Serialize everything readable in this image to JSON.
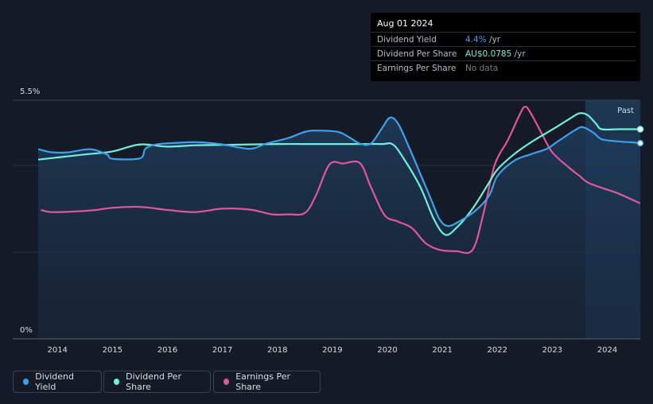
{
  "tooltip": {
    "date": "Aug 01 2024",
    "rows": [
      {
        "label": "Dividend Yield",
        "value": "4.4%",
        "unit": " /yr",
        "color": "#3ea0ea"
      },
      {
        "label": "Dividend Per Share",
        "value": "AU$0.0785",
        "unit": " /yr",
        "color": "#6ef0dc"
      },
      {
        "label": "Earnings Per Share",
        "value": "No data",
        "unit": "",
        "color": "#767d89"
      }
    ]
  },
  "legend": [
    {
      "label": "Dividend Yield",
      "color": "#3ea0ea"
    },
    {
      "label": "Dividend Per Share",
      "color": "#6ef0dc"
    },
    {
      "label": "Earnings Per Share",
      "color": "#e0559c"
    }
  ],
  "chart_data": {
    "type": "line",
    "ymax_label": "5.5%",
    "ymin_label": "0%",
    "ylim": [
      0,
      5.5
    ],
    "xlim": [
      2013.65,
      2024.6
    ],
    "x_ticks": [
      "2014",
      "2015",
      "2016",
      "2017",
      "2018",
      "2019",
      "2020",
      "2021",
      "2022",
      "2023",
      "2024"
    ],
    "past_label": "Past",
    "past_start": 2023.6,
    "series": [
      {
        "name": "Dividend Yield",
        "color": "#3ea0ea",
        "points": [
          [
            2013.65,
            4.37
          ],
          [
            2013.9,
            4.3
          ],
          [
            2014.2,
            4.3
          ],
          [
            2014.6,
            4.37
          ],
          [
            2014.9,
            4.25
          ],
          [
            2015.0,
            4.15
          ],
          [
            2015.5,
            4.16
          ],
          [
            2015.6,
            4.38
          ],
          [
            2015.8,
            4.48
          ],
          [
            2016.2,
            4.52
          ],
          [
            2016.6,
            4.53
          ],
          [
            2017.0,
            4.48
          ],
          [
            2017.5,
            4.38
          ],
          [
            2017.8,
            4.5
          ],
          [
            2018.2,
            4.63
          ],
          [
            2018.5,
            4.77
          ],
          [
            2018.7,
            4.8
          ],
          [
            2019.1,
            4.77
          ],
          [
            2019.3,
            4.65
          ],
          [
            2019.5,
            4.5
          ],
          [
            2019.7,
            4.5
          ],
          [
            2019.9,
            4.85
          ],
          [
            2020.05,
            5.1
          ],
          [
            2020.2,
            4.95
          ],
          [
            2020.4,
            4.4
          ],
          [
            2020.6,
            3.8
          ],
          [
            2020.8,
            3.2
          ],
          [
            2020.95,
            2.75
          ],
          [
            2021.1,
            2.6
          ],
          [
            2021.3,
            2.7
          ],
          [
            2021.6,
            2.95
          ],
          [
            2021.85,
            3.3
          ],
          [
            2022.0,
            3.75
          ],
          [
            2022.3,
            4.1
          ],
          [
            2022.6,
            4.25
          ],
          [
            2022.9,
            4.38
          ],
          [
            2023.1,
            4.55
          ],
          [
            2023.4,
            4.8
          ],
          [
            2023.55,
            4.88
          ],
          [
            2023.75,
            4.75
          ],
          [
            2023.9,
            4.6
          ],
          [
            2024.2,
            4.55
          ],
          [
            2024.45,
            4.53
          ],
          [
            2024.6,
            4.51
          ]
        ]
      },
      {
        "name": "Dividend Per Share",
        "color": "#6ef0dc",
        "points": [
          [
            2013.65,
            4.13
          ],
          [
            2014.0,
            4.18
          ],
          [
            2014.5,
            4.25
          ],
          [
            2015.0,
            4.32
          ],
          [
            2015.5,
            4.48
          ],
          [
            2016.0,
            4.43
          ],
          [
            2016.5,
            4.46
          ],
          [
            2017.0,
            4.47
          ],
          [
            2017.5,
            4.48
          ],
          [
            2018.0,
            4.49
          ],
          [
            2018.5,
            4.49
          ],
          [
            2019.0,
            4.49
          ],
          [
            2019.5,
            4.49
          ],
          [
            2019.9,
            4.49
          ],
          [
            2020.1,
            4.48
          ],
          [
            2020.3,
            4.15
          ],
          [
            2020.6,
            3.5
          ],
          [
            2020.85,
            2.75
          ],
          [
            2021.05,
            2.4
          ],
          [
            2021.25,
            2.55
          ],
          [
            2021.55,
            3.0
          ],
          [
            2021.85,
            3.6
          ],
          [
            2022.0,
            3.9
          ],
          [
            2022.3,
            4.25
          ],
          [
            2022.6,
            4.52
          ],
          [
            2022.9,
            4.75
          ],
          [
            2023.1,
            4.9
          ],
          [
            2023.35,
            5.1
          ],
          [
            2023.5,
            5.2
          ],
          [
            2023.65,
            5.15
          ],
          [
            2023.8,
            4.95
          ],
          [
            2023.9,
            4.83
          ],
          [
            2024.2,
            4.83
          ],
          [
            2024.6,
            4.83
          ]
        ]
      },
      {
        "name": "Earnings Per Share",
        "color": "#e0559c",
        "points": [
          [
            2013.7,
            2.97
          ],
          [
            2013.9,
            2.92
          ],
          [
            2014.4,
            2.94
          ],
          [
            2014.7,
            2.97
          ],
          [
            2015.0,
            3.02
          ],
          [
            2015.5,
            3.04
          ],
          [
            2016.0,
            2.97
          ],
          [
            2016.5,
            2.92
          ],
          [
            2017.0,
            3.0
          ],
          [
            2017.5,
            2.98
          ],
          [
            2017.9,
            2.87
          ],
          [
            2018.2,
            2.87
          ],
          [
            2018.5,
            2.9
          ],
          [
            2018.7,
            3.3
          ],
          [
            2018.95,
            4.02
          ],
          [
            2019.2,
            4.04
          ],
          [
            2019.5,
            4.05
          ],
          [
            2019.7,
            3.5
          ],
          [
            2019.95,
            2.85
          ],
          [
            2020.2,
            2.7
          ],
          [
            2020.45,
            2.55
          ],
          [
            2020.7,
            2.2
          ],
          [
            2020.95,
            2.05
          ],
          [
            2021.25,
            2.02
          ],
          [
            2021.55,
            2.05
          ],
          [
            2021.75,
            2.9
          ],
          [
            2021.95,
            4.0
          ],
          [
            2022.2,
            4.6
          ],
          [
            2022.4,
            5.15
          ],
          [
            2022.5,
            5.35
          ],
          [
            2022.6,
            5.22
          ],
          [
            2022.8,
            4.75
          ],
          [
            2023.0,
            4.3
          ],
          [
            2023.3,
            3.95
          ],
          [
            2023.5,
            3.75
          ],
          [
            2023.65,
            3.6
          ],
          [
            2023.9,
            3.48
          ],
          [
            2024.2,
            3.35
          ],
          [
            2024.6,
            3.12
          ]
        ]
      }
    ]
  }
}
